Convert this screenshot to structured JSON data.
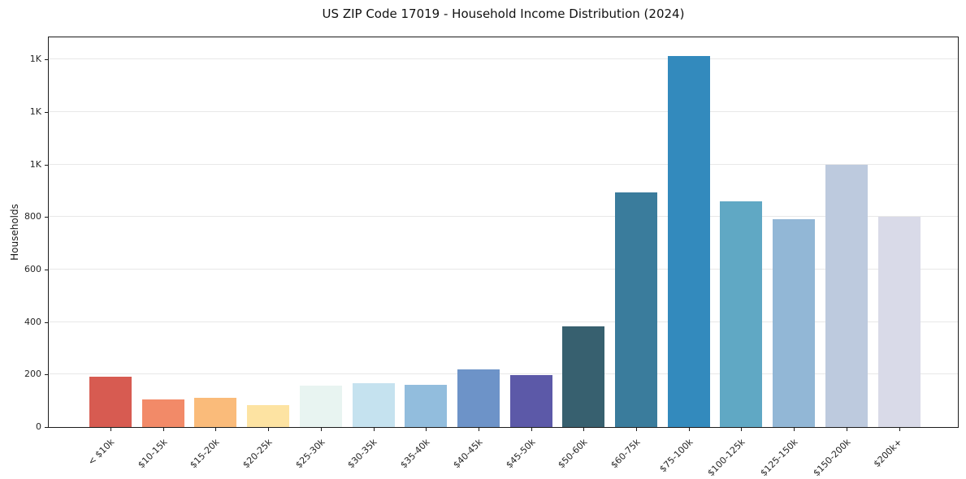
{
  "chart_data": {
    "type": "bar",
    "title": "US ZIP Code 17019 - Household Income Distribution (2024)",
    "xlabel": "",
    "ylabel": "Households",
    "categories": [
      "< $10k",
      "$10-15k",
      "$15-20k",
      "$20-25k",
      "$25-30k",
      "$30-35k",
      "$35-40k",
      "$40-45k",
      "$45-50k",
      "$50-60k",
      "$60-75k",
      "$75-100k",
      "$100-125k",
      "$125-150k",
      "$150-200k",
      "$200k+"
    ],
    "values": [
      193,
      105,
      111,
      82,
      158,
      167,
      161,
      220,
      198,
      383,
      895,
      1413,
      860,
      790,
      1000,
      802
    ],
    "bar_colors": [
      "#d75b51",
      "#f28a68",
      "#fabb7a",
      "#fde3a2",
      "#e8f4f1",
      "#c5e2ef",
      "#92bddd",
      "#6d93c8",
      "#5c59a8",
      "#37606f",
      "#3a7c9c",
      "#338abd",
      "#60a8c4",
      "#92b7d6",
      "#bdcade",
      "#d9dae8"
    ],
    "ylim": [
      0,
      1484
    ],
    "yticks": [
      {
        "value": 0,
        "label": "0"
      },
      {
        "value": 200,
        "label": "200"
      },
      {
        "value": 400,
        "label": "400"
      },
      {
        "value": 600,
        "label": "600"
      },
      {
        "value": 800,
        "label": "800"
      },
      {
        "value": 1000,
        "label": "1K"
      },
      {
        "value": 1200,
        "label": "1K"
      },
      {
        "value": 1400,
        "label": "1K"
      }
    ],
    "grid": "horizontal",
    "legend": "none"
  },
  "colors": {
    "background": "#ffffff",
    "gridline": "#e8e8e8",
    "spine": "#1c1c1c",
    "tick": "#1a1a1a",
    "tick_text": "#262626",
    "title_text": "#111111"
  }
}
